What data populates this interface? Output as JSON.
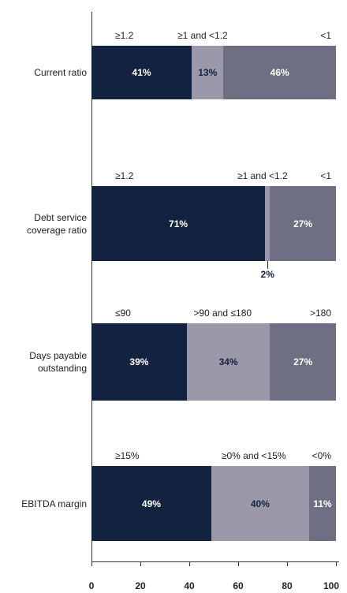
{
  "chart_data": {
    "type": "stacked_bar",
    "orientation": "horizontal",
    "categories": [
      "Current ratio",
      "Debt service coverage ratio",
      "Days payable outstanding",
      "EBITDA margin"
    ],
    "segment_labels": [
      [
        "≥1.2",
        "≥1 and <1.2",
        "<1"
      ],
      [
        "≥1.2",
        "≥1 and <1.2",
        "<1"
      ],
      [
        "≤90",
        ">90 and ≤180",
        ">180"
      ],
      [
        "≥15%",
        "≥0% and <15%",
        "<0%"
      ]
    ],
    "series": [
      {
        "color": "#13223f",
        "label_color": "#ffffff",
        "values": [
          41,
          71,
          39,
          49
        ],
        "value_labels": [
          "41%",
          "71%",
          "39%",
          "49%"
        ]
      },
      {
        "color": "#9b98aa",
        "label_color": "#13223f",
        "values": [
          13,
          2,
          34,
          40
        ],
        "value_labels": [
          "13%",
          "2%",
          "34%",
          "40%"
        ]
      },
      {
        "color": "#6e6f82",
        "label_color": "#ffffff",
        "values": [
          46,
          27,
          27,
          11
        ],
        "value_labels": [
          "46%",
          "27%",
          "27%",
          "11%"
        ]
      }
    ],
    "xlim": [
      0,
      100
    ],
    "xticks": [
      0,
      20,
      40,
      60,
      80,
      100
    ]
  }
}
